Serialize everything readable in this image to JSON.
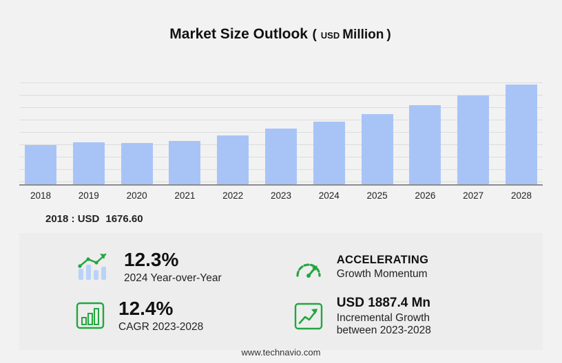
{
  "title": {
    "main": "Market Size Outlook",
    "open": "(",
    "currency": "USD",
    "unit": "Million",
    "close": ")"
  },
  "chart_data": {
    "type": "bar",
    "title": "Market Size Outlook (USD Million)",
    "categories": [
      "2018",
      "2019",
      "2020",
      "2021",
      "2022",
      "2023",
      "2024",
      "2025",
      "2026",
      "2027",
      "2028"
    ],
    "values": [
      1676.6,
      1790.2,
      1752.4,
      1846.1,
      2078.5,
      2377.2,
      2669.6,
      2994.8,
      3364.7,
      3787.9,
      4264.6
    ],
    "xlabel": "",
    "ylabel": "USD Million",
    "ylim": [
      0,
      4400
    ],
    "grid": "horizontal",
    "legend": "none",
    "annotation": "2018 : USD 1676.60"
  },
  "annotation": {
    "prefix": "2018 : USD",
    "value": "1676.60"
  },
  "stats": {
    "yoy": {
      "value": "12.3%",
      "label": "2024 Year-over-Year"
    },
    "momentum": {
      "title": "ACCELERATING",
      "label": "Growth Momentum"
    },
    "cagr": {
      "value": "12.4%",
      "label": "CAGR 2023-2028"
    },
    "incremental": {
      "value": "USD 1887.4 Mn",
      "line1": "Incremental Growth",
      "line2": "between 2023-2028"
    }
  },
  "footer": {
    "url": "www.technavio.com"
  },
  "colors": {
    "background": "#f2f2f2",
    "panel": "#ededed",
    "bar": "#a8c4f7",
    "accent_green": "#22a63e",
    "grid_line": "#dcdcdc",
    "baseline": "#8c8c8c"
  }
}
